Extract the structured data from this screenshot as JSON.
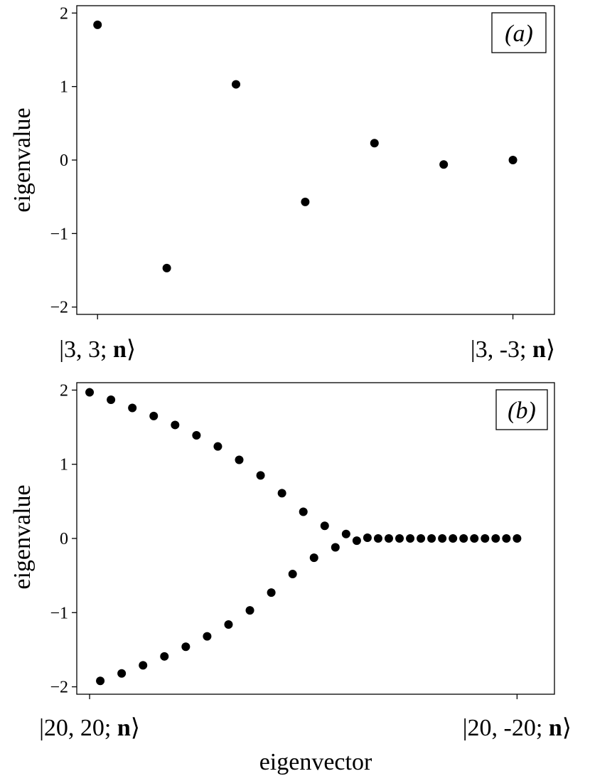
{
  "chart_data": [
    {
      "type": "scatter",
      "panel_label": "(a)",
      "ylabel": "eigenvalue",
      "ylim": [
        -2.1,
        2.1
      ],
      "yticks": [
        -2,
        -1,
        0,
        1,
        2
      ],
      "ytick_labels": [
        "−2",
        "−1",
        "0",
        "1",
        "2"
      ],
      "xlim": [
        -0.3,
        6.6
      ],
      "x_endpoint_labels": [
        {
          "x": 0,
          "prefix": "|3, 3; ",
          "bold": "n",
          "suffix": "⟩"
        },
        {
          "x": 6,
          "prefix": "|3, -3; ",
          "bold": "n",
          "suffix": "⟩"
        }
      ],
      "x": [
        0,
        1,
        2,
        3,
        4,
        5,
        6
      ],
      "values": [
        1.84,
        -1.47,
        1.03,
        -0.57,
        0.23,
        -0.06,
        0.0
      ]
    },
    {
      "type": "scatter",
      "panel_label": "(b)",
      "ylabel": "eigenvalue",
      "xlabel": "eigenvector",
      "ylim": [
        -2.1,
        2.1
      ],
      "yticks": [
        -2,
        -1,
        0,
        1,
        2
      ],
      "ytick_labels": [
        "−2",
        "−1",
        "0",
        "1",
        "2"
      ],
      "xlim": [
        -1.2,
        43.5
      ],
      "x_endpoint_labels": [
        {
          "x": 0,
          "prefix": "|20, 20; ",
          "bold": "n",
          "suffix": "⟩"
        },
        {
          "x": 40,
          "prefix": "|20, -20; ",
          "bold": "n",
          "suffix": "⟩"
        }
      ],
      "x": [
        0,
        1,
        2,
        3,
        4,
        5,
        6,
        7,
        8,
        9,
        10,
        11,
        12,
        13,
        14,
        15,
        16,
        17,
        18,
        19,
        20,
        21,
        22,
        23,
        24,
        25,
        26,
        27,
        28,
        29,
        30,
        31,
        32,
        33,
        34,
        35,
        36,
        37,
        38,
        39,
        40
      ],
      "values": [
        1.97,
        -1.92,
        1.87,
        -1.82,
        1.76,
        -1.71,
        1.65,
        -1.59,
        1.53,
        -1.46,
        1.39,
        -1.32,
        1.24,
        -1.16,
        1.06,
        -0.97,
        0.85,
        -0.73,
        0.61,
        -0.48,
        0.36,
        -0.26,
        0.17,
        -0.12,
        0.06,
        -0.03,
        0.01,
        0.0,
        0.0,
        0.0,
        0.0,
        0.0,
        0.0,
        0.0,
        0.0,
        0.0,
        0.0,
        0.0,
        0.0,
        0.0,
        0.0
      ]
    }
  ]
}
